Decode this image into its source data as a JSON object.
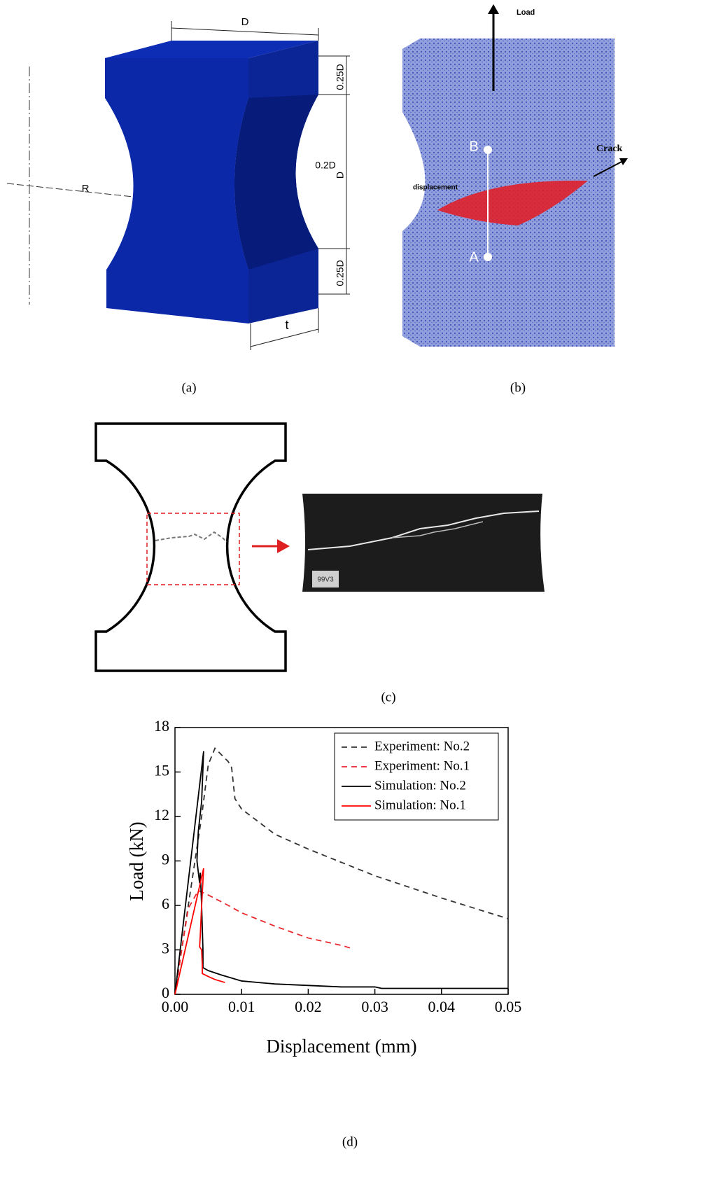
{
  "panel_a": {
    "label": "(a)",
    "dimensions": {
      "top_width": "D",
      "top_height": "0.25D",
      "middle_height": "D",
      "bottom_height": "0.25D",
      "neck_depth": "0.2D",
      "radius": "R",
      "thickness": "t"
    }
  },
  "panel_b": {
    "label": "(b)",
    "annotations": {
      "load": "Load",
      "point_b": "B",
      "point_a": "A",
      "crack": "Crack",
      "displacement": "displacement"
    }
  },
  "panel_c": {
    "label": "(c)",
    "image_tag": "99V3"
  },
  "chart_data": {
    "type": "line",
    "panel_label": "(d)",
    "xlabel": "Displacement (mm)",
    "ylabel": "Load (kN)",
    "xlim": [
      0,
      0.05
    ],
    "xticks": [
      {
        "value": 0,
        "label": "0.00"
      },
      0.01,
      0.02,
      0.03,
      0.04,
      0.05
    ],
    "ylim": [
      0,
      18
    ],
    "yticks": [
      0,
      3,
      6,
      9,
      12,
      15,
      18
    ],
    "grid": false,
    "legend": "upper right",
    "series": [
      {
        "name": "Experiment: No.2",
        "color": "#333333",
        "linestyle": "dashed",
        "x": [
          0,
          0.002,
          0.003,
          0.004,
          0.005,
          0.006,
          0.008,
          0.0085,
          0.009,
          0.01,
          0.015,
          0.02,
          0.03,
          0.04,
          0.05
        ],
        "values": [
          0,
          6,
          9,
          12,
          15.5,
          16.6,
          15.7,
          15.3,
          13.2,
          12.5,
          10.8,
          9.8,
          8.0,
          6.5,
          5.1
        ]
      },
      {
        "name": "Experiment: No.1",
        "color": "#e8262b",
        "linestyle": "dashed",
        "x": [
          0,
          0.001,
          0.002,
          0.003,
          0.0035,
          0.005,
          0.008,
          0.01,
          0.015,
          0.02,
          0.025,
          0.0265
        ],
        "values": [
          0,
          3,
          5.8,
          6.6,
          7,
          6.7,
          6.0,
          5.5,
          4.6,
          3.8,
          3.3,
          3.1
        ]
      },
      {
        "name": "Simulation: No.2",
        "color": "#000000",
        "linestyle": "solid",
        "x": [
          0,
          0.0043,
          0.004,
          0.0035,
          0.0033,
          0.0037,
          0.0038,
          0.004,
          0.0042,
          0.0042,
          0.005,
          0.007,
          0.01,
          0.015,
          0.02,
          0.025,
          0.03,
          0.031,
          0.04,
          0.05
        ],
        "values": [
          0,
          16.4,
          13,
          11,
          9,
          7.5,
          8.2,
          6,
          3,
          1.8,
          1.6,
          1.3,
          0.9,
          0.7,
          0.6,
          0.5,
          0.5,
          0.4,
          0.4,
          0.4
        ]
      },
      {
        "name": "Simulation: No.1",
        "color": "#ff0000",
        "linestyle": "solid",
        "x": [
          0,
          0.0043,
          0.004,
          0.0038,
          0.0037,
          0.004,
          0.0041,
          0.0041,
          0.005,
          0.006,
          0.0075
        ],
        "values": [
          0,
          8.5,
          6,
          4,
          3.2,
          3,
          2,
          1.4,
          1.2,
          1.0,
          0.8
        ]
      }
    ]
  }
}
